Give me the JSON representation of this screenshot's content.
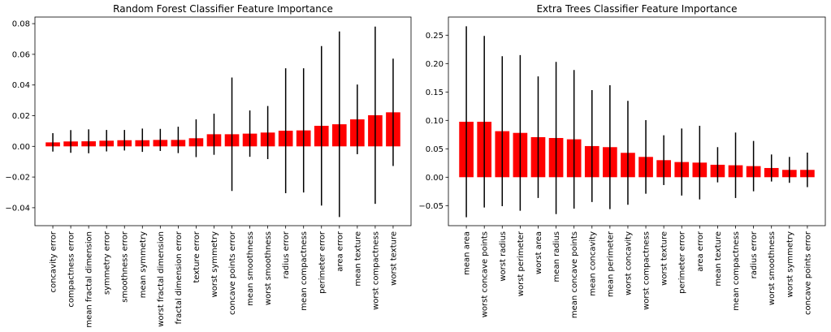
{
  "chart_data": [
    {
      "type": "bar",
      "title": "Random Forest Classifier Feature Importance",
      "xlabel": "",
      "ylabel": "",
      "ylim": [
        -0.0517,
        0.0843
      ],
      "yticks": [
        -0.04,
        -0.02,
        0.0,
        0.02,
        0.04,
        0.06,
        0.08
      ],
      "ytick_labels": [
        "−0.04",
        "−0.02",
        "0.00",
        "0.02",
        "0.04",
        "0.06",
        "0.08"
      ],
      "bar_color": "#ff0000",
      "error_color": "#000000",
      "grid": false,
      "categories": [
        "concavity error",
        "compactness error",
        "mean fractal dimension",
        "symmetry error",
        "smoothness error",
        "mean symmetry",
        "worst fractal dimension",
        "fractal dimension error",
        "texture error",
        "worst symmetry",
        "concave points error",
        "mean smoothness",
        "worst smoothness",
        "radius error",
        "mean compactness",
        "perimeter error",
        "area error",
        "mean texture",
        "worst compactness",
        "worst texture"
      ],
      "values": [
        0.0026,
        0.0032,
        0.0033,
        0.0037,
        0.004,
        0.004,
        0.0042,
        0.0042,
        0.0053,
        0.0079,
        0.0079,
        0.0083,
        0.009,
        0.0102,
        0.0104,
        0.0134,
        0.0144,
        0.0176,
        0.0203,
        0.0222
      ],
      "errors": [
        0.006,
        0.0074,
        0.0078,
        0.007,
        0.0067,
        0.0076,
        0.0072,
        0.0086,
        0.0123,
        0.0134,
        0.037,
        0.0151,
        0.0173,
        0.0407,
        0.0405,
        0.052,
        0.0605,
        0.0227,
        0.0578,
        0.035
      ]
    },
    {
      "type": "bar",
      "title": "Extra Trees Classifier Feature Importance",
      "xlabel": "",
      "ylabel": "",
      "ylim": [
        -0.0853,
        0.2819
      ],
      "yticks": [
        -0.05,
        0.0,
        0.05,
        0.1,
        0.15,
        0.2,
        0.25
      ],
      "ytick_labels": [
        "−0.05",
        "0.00",
        "0.05",
        "0.10",
        "0.15",
        "0.20",
        "0.25"
      ],
      "bar_color": "#ff0000",
      "error_color": "#000000",
      "grid": false,
      "categories": [
        "mean area",
        "worst concave points",
        "worst radius",
        "worst perimeter",
        "worst area",
        "mean radius",
        "mean concave points",
        "mean concavity",
        "mean perimeter",
        "worst concavity",
        "worst compactness",
        "worst texture",
        "perimeter error",
        "area error",
        "mean texture",
        "mean compactness",
        "radius error",
        "worst smoothness",
        "worst symmetry",
        "concave points error"
      ],
      "values": [
        0.0976,
        0.0976,
        0.081,
        0.078,
        0.0705,
        0.069,
        0.0667,
        0.0548,
        0.0529,
        0.0429,
        0.0357,
        0.03,
        0.0267,
        0.0257,
        0.0219,
        0.021,
        0.0195,
        0.0162,
        0.0129,
        0.0129
      ],
      "errors": [
        0.168,
        0.151,
        0.132,
        0.137,
        0.107,
        0.134,
        0.122,
        0.0985,
        0.109,
        0.0914,
        0.0648,
        0.0438,
        0.059,
        0.0648,
        0.031,
        0.0576,
        0.0443,
        0.0238,
        0.0228,
        0.0304
      ]
    }
  ]
}
